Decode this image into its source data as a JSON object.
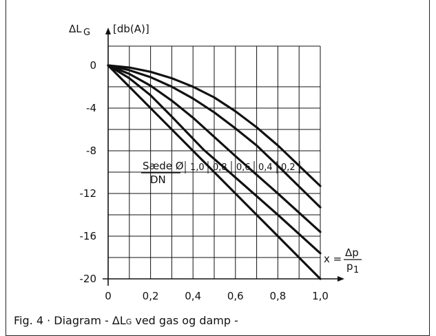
{
  "chart_data": {
    "type": "line",
    "ylabel_prefix": "ΔL",
    "ylabel_sub": "G",
    "ylabel_unit": "[db(A)]",
    "xlim": [
      0,
      1.0
    ],
    "ylim": [
      -20,
      0
    ],
    "x_ticks": [
      "0",
      "0,2",
      "0,4",
      "0,6",
      "0,8",
      "1,0"
    ],
    "y_ticks": [
      "0",
      "-4",
      "-8",
      "-12",
      "-16",
      "-20"
    ],
    "x_tick_values": [
      0,
      0.2,
      0.4,
      0.6,
      0.8,
      1.0
    ],
    "y_tick_values": [
      0,
      -4,
      -8,
      -12,
      -16,
      -20
    ],
    "grid": true,
    "ratio_label_top": "Sæde Ø",
    "ratio_label_bottom": "DN",
    "series": [
      {
        "name": "1,0",
        "x": [
          0,
          1.0
        ],
        "y": [
          0,
          -20.0
        ]
      },
      {
        "name": "0,8",
        "x": [
          0,
          0.1,
          0.2,
          0.3,
          0.45,
          0.6,
          0.8,
          1.0
        ],
        "y": [
          0,
          -1.2,
          -2.8,
          -4.8,
          -7.9,
          -10.5,
          -14.0,
          -17.6
        ]
      },
      {
        "name": "0,6",
        "x": [
          0,
          0.1,
          0.2,
          0.3,
          0.4,
          0.5,
          0.6,
          0.8,
          1.0
        ],
        "y": [
          0,
          -0.8,
          -1.9,
          -3.3,
          -4.9,
          -6.7,
          -8.5,
          -12.0,
          -15.6
        ]
      },
      {
        "name": "0,4",
        "x": [
          0,
          0.1,
          0.2,
          0.3,
          0.4,
          0.5,
          0.6,
          0.7,
          0.8,
          1.0
        ],
        "y": [
          0,
          -0.45,
          -1.1,
          -2.0,
          -3.1,
          -4.4,
          -5.9,
          -7.5,
          -9.4,
          -13.3
        ]
      },
      {
        "name": "0,2",
        "x": [
          0,
          0.1,
          0.2,
          0.3,
          0.4,
          0.5,
          0.6,
          0.7,
          0.8,
          1.0
        ],
        "y": [
          0,
          -0.2,
          -0.6,
          -1.2,
          -2.0,
          -3.0,
          -4.3,
          -5.8,
          -7.5,
          -11.3
        ]
      }
    ],
    "x_variable_prefix": "x =",
    "x_variable_num": "Δp",
    "x_variable_den": "p",
    "x_variable_den_sub": "1"
  },
  "caption": {
    "prefix": "Fig. 4 · Diagram - ΔL",
    "sub": "G",
    "suffix": " ved gas og damp -"
  }
}
